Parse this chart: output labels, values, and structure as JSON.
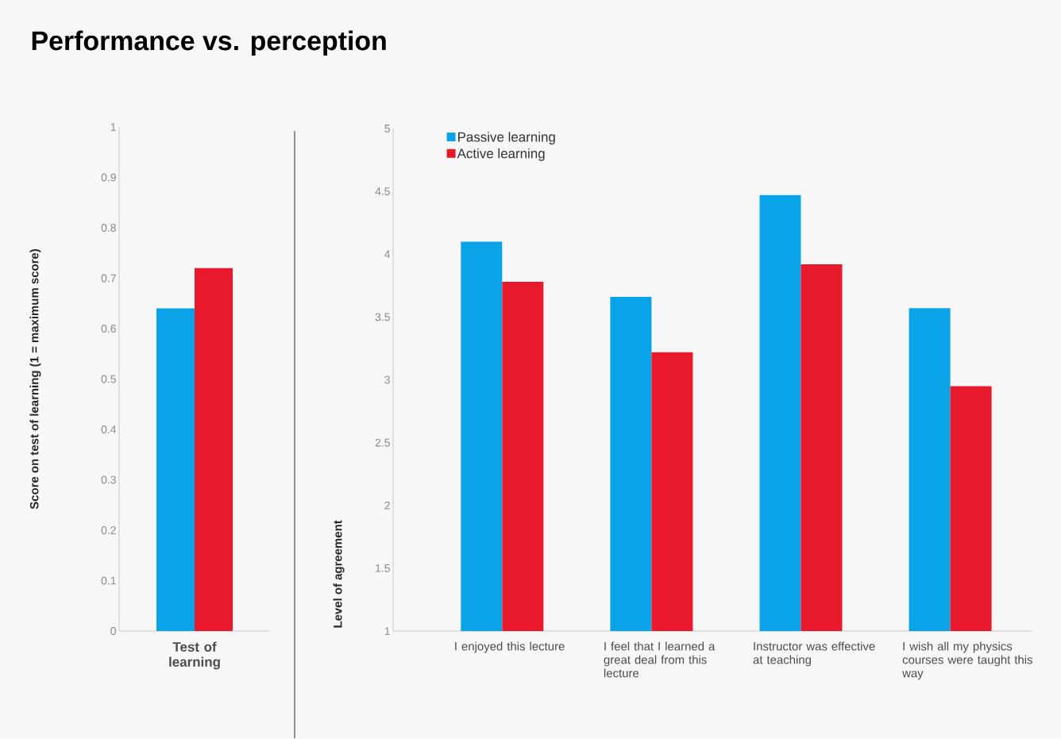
{
  "chart_data": [
    {
      "type": "bar",
      "title": "Performance vs. perception",
      "ylabel": "Score on test of learning (1 = maximum score)",
      "categories": [
        "Test of learning"
      ],
      "series": [
        {
          "color": "#0aa3e8",
          "values": [
            0.64
          ]
        },
        {
          "color": "#e8192c",
          "values": [
            0.72
          ]
        }
      ],
      "ylim": [
        0,
        1
      ],
      "yticks": [
        0,
        0.1,
        0.2,
        0.3,
        0.4,
        0.5,
        0.6,
        0.7,
        0.8,
        0.9,
        1
      ]
    },
    {
      "type": "bar",
      "ylabel": "Level of agreement",
      "categories": [
        "I enjoyed this lecture",
        "I feel that I learned a great deal from this lecture",
        "Instructor was effective at teaching",
        "I wish all my physics courses were taught this way"
      ],
      "series": [
        {
          "name": "Passive learning",
          "color": "#0aa3e8",
          "values": [
            4.1,
            3.66,
            4.47,
            3.57
          ]
        },
        {
          "name": "Active learning",
          "color": "#e8192c",
          "values": [
            3.78,
            3.22,
            3.92,
            2.95
          ]
        }
      ],
      "ylim": [
        1,
        5
      ],
      "yticks": [
        1,
        1.5,
        2,
        2.5,
        3,
        3.5,
        4,
        4.5,
        5
      ],
      "legend": "top left"
    }
  ]
}
